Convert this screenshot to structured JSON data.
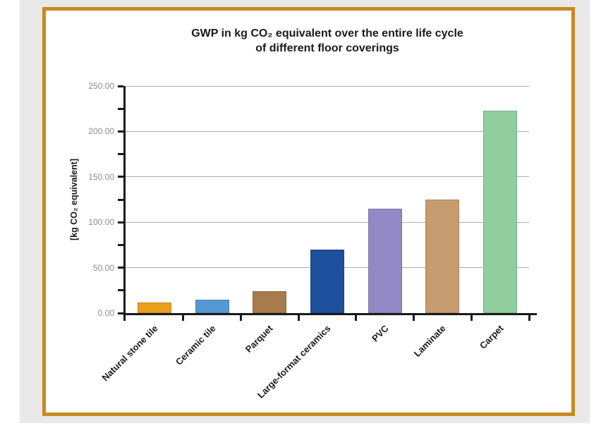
{
  "page": {
    "background_color": "#FFFFFF",
    "panel_color": "#E8E9E8",
    "frame_border_color": "#C98A1F",
    "chart_background": "#FFFFFF"
  },
  "chart_data": {
    "type": "bar",
    "title_line1": "GWP in kg CO₂ equivalent over the entire life cycle",
    "title_line2": "of different floor coverings",
    "ylabel": "[kg CO₂ equivalent]",
    "xlabel": "",
    "categories": [
      "Natural stone tile",
      "Ceramic tile",
      "Parquet",
      "Large-format ceramics",
      "PVC",
      "Laminate",
      "Carpet"
    ],
    "values": [
      12,
      15,
      24,
      70,
      115,
      125,
      223
    ],
    "bar_colors": [
      "#E8A01E",
      "#5598D2",
      "#A87B4C",
      "#1C4F9C",
      "#9289C6",
      "#C59C6F",
      "#90CEA0"
    ],
    "ylim": [
      0,
      250
    ],
    "y_tick_values": [
      0,
      50,
      100,
      150,
      200,
      250
    ],
    "y_tick_labels": [
      "0.00",
      "50.00",
      "100.00",
      "150.00",
      "200.00",
      "250.00"
    ],
    "minor_tick_step": 25,
    "grid": "horizontal",
    "gridline_color": "#ABABAB",
    "axis_color": "#1A1A1A",
    "tick_label_color": "#8B8B8B",
    "legend": "none"
  }
}
